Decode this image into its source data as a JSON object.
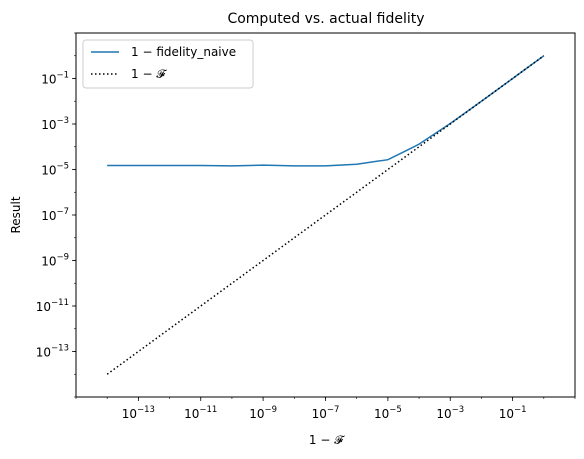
{
  "chart_data": {
    "type": "line",
    "title": "Computed vs. actual fidelity",
    "xlabel": "1 − 𝓕",
    "ylabel": "Result",
    "xscale": "log",
    "yscale": "log",
    "xlim": [
      1e-15,
      10
    ],
    "ylim": [
      1e-15,
      10
    ],
    "x_ticks": [
      {
        "exp": -13,
        "label": "10",
        "sup": "−13"
      },
      {
        "exp": -11,
        "label": "10",
        "sup": "−11"
      },
      {
        "exp": -9,
        "label": "10",
        "sup": "−9"
      },
      {
        "exp": -7,
        "label": "10",
        "sup": "−7"
      },
      {
        "exp": -5,
        "label": "10",
        "sup": "−5"
      },
      {
        "exp": -3,
        "label": "10",
        "sup": "−3"
      },
      {
        "exp": -1,
        "label": "10",
        "sup": "−1"
      }
    ],
    "y_ticks": [
      {
        "exp": -13,
        "label": "10",
        "sup": "−13"
      },
      {
        "exp": -11,
        "label": "10",
        "sup": "−11"
      },
      {
        "exp": -9,
        "label": "10",
        "sup": "−9"
      },
      {
        "exp": -7,
        "label": "10",
        "sup": "−7"
      },
      {
        "exp": -5,
        "label": "10",
        "sup": "−5"
      },
      {
        "exp": -3,
        "label": "10",
        "sup": "−3"
      },
      {
        "exp": -1,
        "label": "10",
        "sup": "−1"
      }
    ],
    "grid": false,
    "legend_position": "top-left",
    "series": [
      {
        "name": "1 − fidelity_naive",
        "color": "#1f77b4",
        "style": "solid",
        "x": [
          1e-14,
          1e-13,
          1e-12,
          1e-11,
          1e-10,
          1e-09,
          1e-08,
          1e-07,
          1e-06,
          1e-05,
          5e-05,
          0.0001,
          0.001,
          0.01,
          0.1,
          1
        ],
        "y": [
          1.5e-05,
          1.5e-05,
          1.5e-05,
          1.5e-05,
          1.45e-05,
          1.55e-05,
          1.45e-05,
          1.45e-05,
          1.7e-05,
          2.7e-05,
          8e-05,
          0.00013,
          0.00105,
          0.01,
          0.1,
          1
        ]
      },
      {
        "name": "1 − 𝓕",
        "color": "#000000",
        "style": "dotted",
        "x": [
          1e-14,
          1e-13,
          1e-12,
          1e-11,
          1e-10,
          1e-09,
          1e-08,
          1e-07,
          1e-06,
          1e-05,
          0.0001,
          0.001,
          0.01,
          0.1,
          1
        ],
        "y": [
          1e-14,
          1e-13,
          1e-12,
          1e-11,
          1e-10,
          1e-09,
          1e-08,
          1e-07,
          1e-06,
          1e-05,
          0.0001,
          0.001,
          0.01,
          0.1,
          1
        ]
      }
    ]
  }
}
